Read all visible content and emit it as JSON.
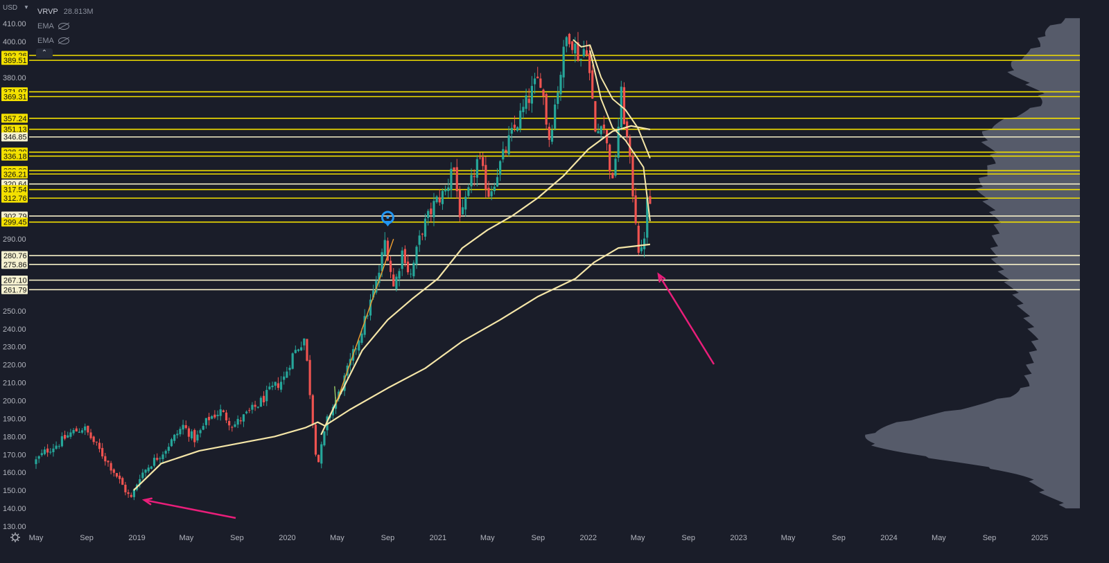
{
  "currency": "USD",
  "legend": {
    "volume_profile": {
      "name": "VRVP",
      "value": "28.813M"
    },
    "ema_1": "EMA",
    "ema_2": "EMA"
  },
  "colors": {
    "background": "#1a1d29",
    "up_candle": "#26a69a",
    "down_candle": "#ef5350",
    "level_line": "#f3e000",
    "level_label_bg": "#f3e000",
    "white_label_bg": "#f5f1d0",
    "ema_line": "#f5e6a8",
    "arrow": "#e91e7a",
    "trendline": "#f0a030",
    "marker": "#2196f3",
    "volume_profile": "#6b7080",
    "axis_text": "#b2b5be"
  },
  "chart_data": {
    "type": "candlestick",
    "title": "",
    "ylim": [
      130,
      415
    ],
    "y_ticks": [
      "410.00",
      "400.00",
      "380.00",
      "290.00",
      "250.00",
      "240.00",
      "230.00",
      "220.00",
      "210.00",
      "200.00",
      "190.00",
      "180.00",
      "170.00",
      "160.00",
      "150.00",
      "140.00",
      "130.00"
    ],
    "x_ticks": [
      "May",
      "Sep",
      "2019",
      "May",
      "Sep",
      "2020",
      "May",
      "Sep",
      "2021",
      "May",
      "Sep",
      "2022",
      "May",
      "Sep",
      "2023",
      "May",
      "Sep",
      "2024",
      "May",
      "Sep",
      "2025"
    ],
    "price_levels": [
      {
        "value": 392.26,
        "label": "392.26",
        "style": "yellow"
      },
      {
        "value": 389.51,
        "label": "389.51",
        "style": "yellow"
      },
      {
        "value": 371.97,
        "label": "371.97",
        "style": "yellow"
      },
      {
        "value": 369.31,
        "label": "369.31",
        "style": "yellow"
      },
      {
        "value": 357.24,
        "label": "357.24",
        "style": "yellow"
      },
      {
        "value": 351.13,
        "label": "351.13",
        "style": "yellow"
      },
      {
        "value": 346.85,
        "label": "346.85",
        "style": "white"
      },
      {
        "value": 338.39,
        "label": "338.39",
        "style": "yellow"
      },
      {
        "value": 336.18,
        "label": "336.18",
        "style": "yellow"
      },
      {
        "value": 328.08,
        "label": "328.08",
        "style": "yellow"
      },
      {
        "value": 326.21,
        "label": "326.21",
        "style": "yellow"
      },
      {
        "value": 320.64,
        "label": "320.64",
        "style": "white"
      },
      {
        "value": 317.54,
        "label": "317.54",
        "style": "yellow"
      },
      {
        "value": 312.76,
        "label": "312.76",
        "style": "yellow"
      },
      {
        "value": 302.79,
        "label": "302.79",
        "style": "white"
      },
      {
        "value": 299.45,
        "label": "299.45",
        "style": "yellow"
      },
      {
        "value": 280.76,
        "label": "280.76",
        "style": "white"
      },
      {
        "value": 275.86,
        "label": "275.86",
        "style": "white"
      },
      {
        "value": 267.1,
        "label": "267.10",
        "style": "white"
      },
      {
        "value": 261.79,
        "label": "261.79",
        "style": "white"
      }
    ],
    "price_path": [
      [
        "2018-05-01",
        165
      ],
      [
        "2018-06-01",
        172
      ],
      [
        "2018-07-01",
        176
      ],
      [
        "2018-08-01",
        182
      ],
      [
        "2018-09-01",
        185
      ],
      [
        "2018-10-01",
        175
      ],
      [
        "2018-11-15",
        160
      ],
      [
        "2018-12-24",
        145
      ],
      [
        "2019-01-15",
        158
      ],
      [
        "2019-02-15",
        166
      ],
      [
        "2019-03-15",
        172
      ],
      [
        "2019-04-30",
        186
      ],
      [
        "2019-05-30",
        178
      ],
      [
        "2019-06-30",
        190
      ],
      [
        "2019-07-30",
        194
      ],
      [
        "2019-08-30",
        186
      ],
      [
        "2019-09-30",
        192
      ],
      [
        "2019-10-30",
        198
      ],
      [
        "2019-11-30",
        206
      ],
      [
        "2019-12-30",
        212
      ],
      [
        "2020-01-20",
        225
      ],
      [
        "2020-02-19",
        235
      ],
      [
        "2020-03-18",
        170
      ],
      [
        "2020-03-23",
        165
      ],
      [
        "2020-04-15",
        190
      ],
      [
        "2020-05-15",
        205
      ],
      [
        "2020-06-15",
        225
      ],
      [
        "2020-07-15",
        245
      ],
      [
        "2020-08-15",
        268
      ],
      [
        "2020-09-02",
        290
      ],
      [
        "2020-09-23",
        262
      ],
      [
        "2020-10-15",
        285
      ],
      [
        "2020-11-01",
        268
      ],
      [
        "2020-11-30",
        295
      ],
      [
        "2020-12-31",
        310
      ],
      [
        "2021-01-31",
        318
      ],
      [
        "2021-02-12",
        335
      ],
      [
        "2021-03-05",
        300
      ],
      [
        "2021-04-15",
        335
      ],
      [
        "2021-05-12",
        315
      ],
      [
        "2021-06-30",
        345
      ],
      [
        "2021-07-30",
        360
      ],
      [
        "2021-08-30",
        375
      ],
      [
        "2021-09-15",
        380
      ],
      [
        "2021-10-04",
        345
      ],
      [
        "2021-11-19",
        406
      ],
      [
        "2021-12-20",
        390
      ],
      [
        "2022-01-03",
        400
      ],
      [
        "2022-01-27",
        345
      ],
      [
        "2022-02-10",
        360
      ],
      [
        "2022-03-08",
        320
      ],
      [
        "2022-03-29",
        370
      ],
      [
        "2022-04-15",
        340
      ],
      [
        "2022-05-06",
        295
      ],
      [
        "2022-05-12",
        280
      ],
      [
        "2022-05-20",
        283
      ],
      [
        "2022-05-31",
        310
      ]
    ],
    "ema_long": [
      [
        "2018-12-24",
        150
      ],
      [
        "2019-03-01",
        165
      ],
      [
        "2019-06-01",
        172
      ],
      [
        "2019-09-01",
        176
      ],
      [
        "2019-12-01",
        180
      ],
      [
        "2020-02-15",
        185
      ],
      [
        "2020-03-15",
        188
      ],
      [
        "2020-04-01",
        186
      ],
      [
        "2020-06-01",
        195
      ],
      [
        "2020-09-01",
        207
      ],
      [
        "2020-12-01",
        218
      ],
      [
        "2021-03-01",
        233
      ],
      [
        "2021-06-01",
        245
      ],
      [
        "2021-09-01",
        258
      ],
      [
        "2021-12-01",
        268
      ],
      [
        "2022-01-15",
        277
      ],
      [
        "2022-03-15",
        285
      ],
      [
        "2022-05-31",
        287
      ]
    ],
    "ema_mid": [
      [
        "2020-03-23",
        181
      ],
      [
        "2020-05-01",
        200
      ],
      [
        "2020-07-01",
        228
      ],
      [
        "2020-09-01",
        245
      ],
      [
        "2020-11-01",
        257
      ],
      [
        "2021-01-01",
        268
      ],
      [
        "2021-03-01",
        285
      ],
      [
        "2021-05-01",
        295
      ],
      [
        "2021-07-01",
        303
      ],
      [
        "2021-09-01",
        313
      ],
      [
        "2021-11-01",
        325
      ],
      [
        "2022-01-01",
        340
      ],
      [
        "2022-03-01",
        350
      ],
      [
        "2022-04-15",
        353
      ],
      [
        "2022-05-31",
        351
      ]
    ],
    "ema_short": [
      [
        "2021-11-25",
        401
      ],
      [
        "2021-12-15",
        397
      ],
      [
        "2022-01-05",
        398
      ],
      [
        "2022-02-01",
        380
      ],
      [
        "2022-03-01",
        368
      ],
      [
        "2022-04-01",
        362
      ],
      [
        "2022-05-01",
        352
      ],
      [
        "2022-05-31",
        335
      ]
    ],
    "ema_short2": [
      [
        "2022-01-05",
        395
      ],
      [
        "2022-02-01",
        368
      ],
      [
        "2022-03-01",
        352
      ],
      [
        "2022-04-01",
        345
      ],
      [
        "2022-05-15",
        330
      ],
      [
        "2022-05-31",
        300
      ]
    ]
  }
}
